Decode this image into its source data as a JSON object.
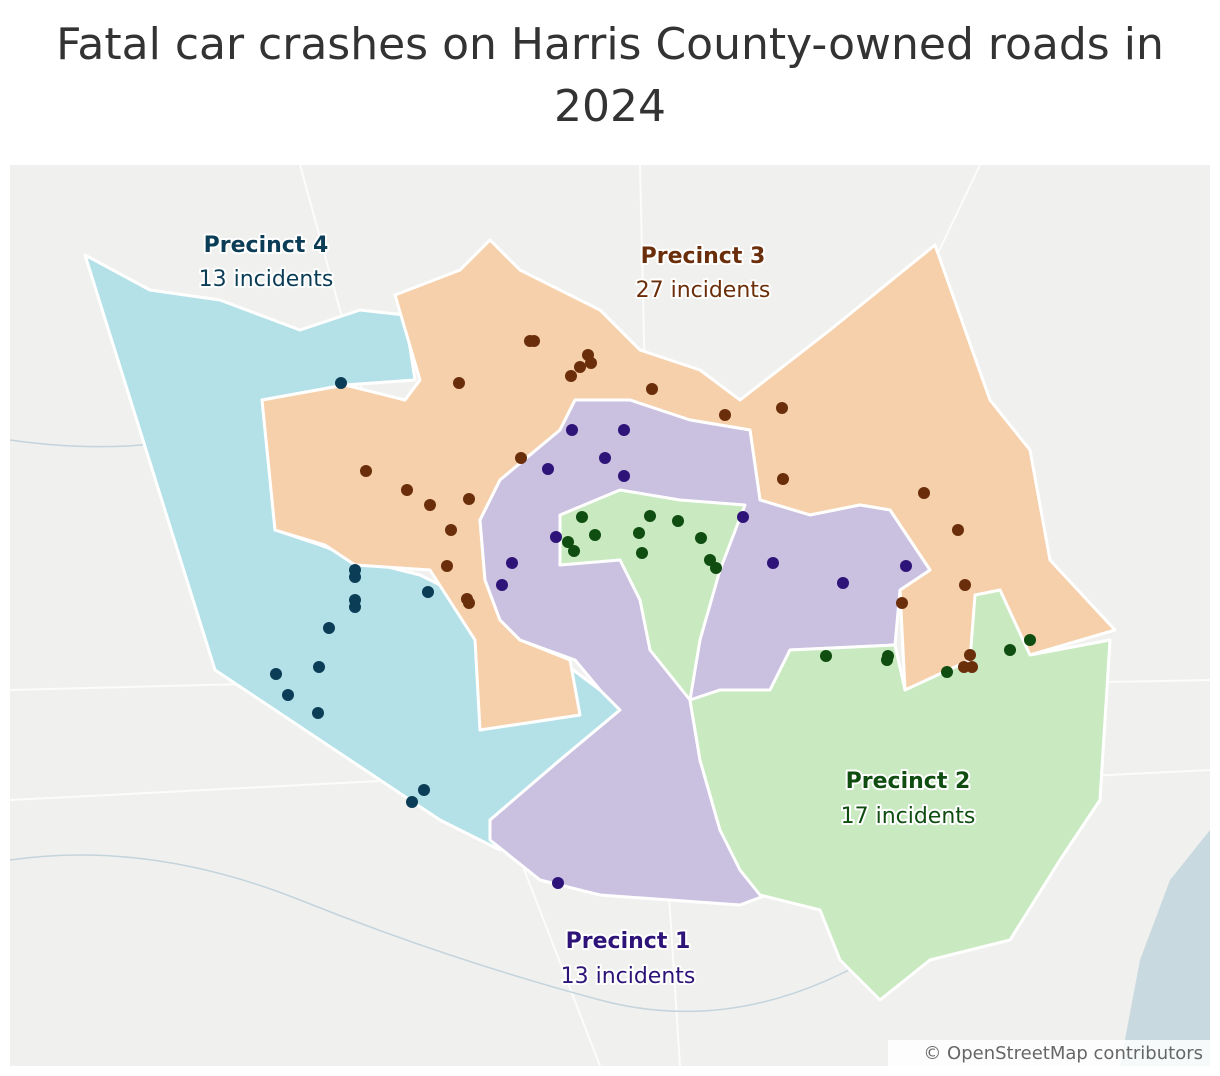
{
  "title": "Fatal car crashes on Harris County-owned roads in 2024",
  "precincts": [
    {
      "name": "Precinct 4",
      "incidents": "13 incidents"
    },
    {
      "name": "Precinct 3",
      "incidents": "27 incidents"
    },
    {
      "name": "Precinct 2",
      "incidents": "17 incidents"
    },
    {
      "name": "Precinct 1",
      "incidents": "13 incidents"
    }
  ],
  "attribution": "© OpenStreetMap contributors"
}
